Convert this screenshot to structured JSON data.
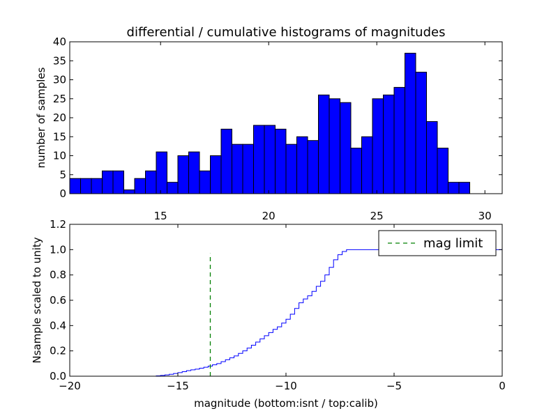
{
  "chart_data": [
    {
      "type": "bar",
      "title": "differential / cumulative histograms of magnitudes",
      "xlabel": "",
      "ylabel": "number of samples",
      "xlim": [
        10.8,
        30.8
      ],
      "ylim": [
        0,
        40
      ],
      "xticks": [
        15,
        20,
        25,
        30
      ],
      "yticks": [
        0,
        5,
        10,
        15,
        20,
        25,
        30,
        35,
        40
      ],
      "bin_start": 10.8,
      "bin_width": 0.5,
      "values": [
        4,
        4,
        4,
        6,
        6,
        1,
        4,
        6,
        11,
        3,
        10,
        11,
        6,
        10,
        17,
        13,
        13,
        18,
        18,
        17,
        13,
        15,
        14,
        26,
        25,
        24,
        12,
        15,
        25,
        26,
        28,
        37,
        32,
        19,
        12,
        3,
        3
      ],
      "bar_color": "#0000ff",
      "edge_color": "#000000"
    },
    {
      "type": "line",
      "title": "",
      "xlabel": "magnitude (bottom:isnt / top:calib)",
      "ylabel": "Nsample scaled to unity",
      "xlim": [
        -20,
        0
      ],
      "ylim": [
        0,
        1.2
      ],
      "xticks": [
        -20,
        -15,
        -10,
        -5,
        0
      ],
      "xtick_labels": [
        "−20",
        "−15",
        "−10",
        "−5",
        "0"
      ],
      "yticks": [
        0,
        0.2,
        0.4,
        0.6,
        0.8,
        1.0,
        1.2
      ],
      "ytick_labels": [
        "0.0",
        "0.2",
        "0.4",
        "0.6",
        "0.8",
        "1.0",
        "1.2"
      ],
      "series": [
        {
          "name": "cumulative",
          "color": "#0000ff",
          "style": "steps",
          "step_start": -16.0,
          "step_width": 0.2,
          "values": [
            0.003,
            0.006,
            0.01,
            0.015,
            0.021,
            0.028,
            0.036,
            0.044,
            0.05,
            0.056,
            0.063,
            0.071,
            0.08,
            0.09,
            0.1,
            0.115,
            0.13,
            0.145,
            0.16,
            0.18,
            0.2,
            0.222,
            0.245,
            0.27,
            0.295,
            0.32,
            0.345,
            0.37,
            0.39,
            0.42,
            0.45,
            0.49,
            0.535,
            0.58,
            0.61,
            0.635,
            0.67,
            0.71,
            0.75,
            0.8,
            0.86,
            0.92,
            0.96,
            0.985,
            1.0
          ],
          "end_x": 0,
          "end_value": 1.0
        },
        {
          "name": "mag limit",
          "color": "#008000",
          "style": "dashed",
          "x": -13.5,
          "y_range": [
            0,
            0.97
          ]
        }
      ],
      "legend": {
        "position": "upper-right",
        "entries": [
          "mag limit"
        ]
      }
    }
  ]
}
